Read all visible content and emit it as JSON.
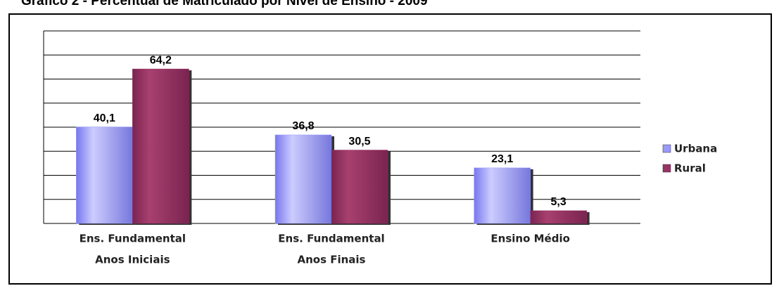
{
  "chart_data": {
    "type": "bar",
    "title": "Gráfico 2 - Percentual de Matriculado por Nível de Ensino - 2009",
    "categories": [
      [
        "Ens. Fundamental",
        "Anos Iniciais"
      ],
      [
        "Ens. Fundamental",
        "Anos Finais"
      ],
      [
        "Ensino Médio"
      ]
    ],
    "series": [
      {
        "name": "Urbana",
        "color": "#9999ff",
        "values": [
          40.1,
          36.8,
          23.1
        ],
        "value_labels": [
          "40,1",
          "36,8",
          "23,1"
        ]
      },
      {
        "name": "Rural",
        "color": "#993366",
        "values": [
          64.2,
          30.5,
          5.3
        ],
        "value_labels": [
          "64,2",
          "30,5",
          "5,3"
        ]
      }
    ],
    "ylim": [
      0,
      80
    ],
    "yticks": [
      0,
      10,
      20,
      30,
      40,
      50,
      60,
      70,
      80
    ],
    "grid": true,
    "legend": "right"
  }
}
